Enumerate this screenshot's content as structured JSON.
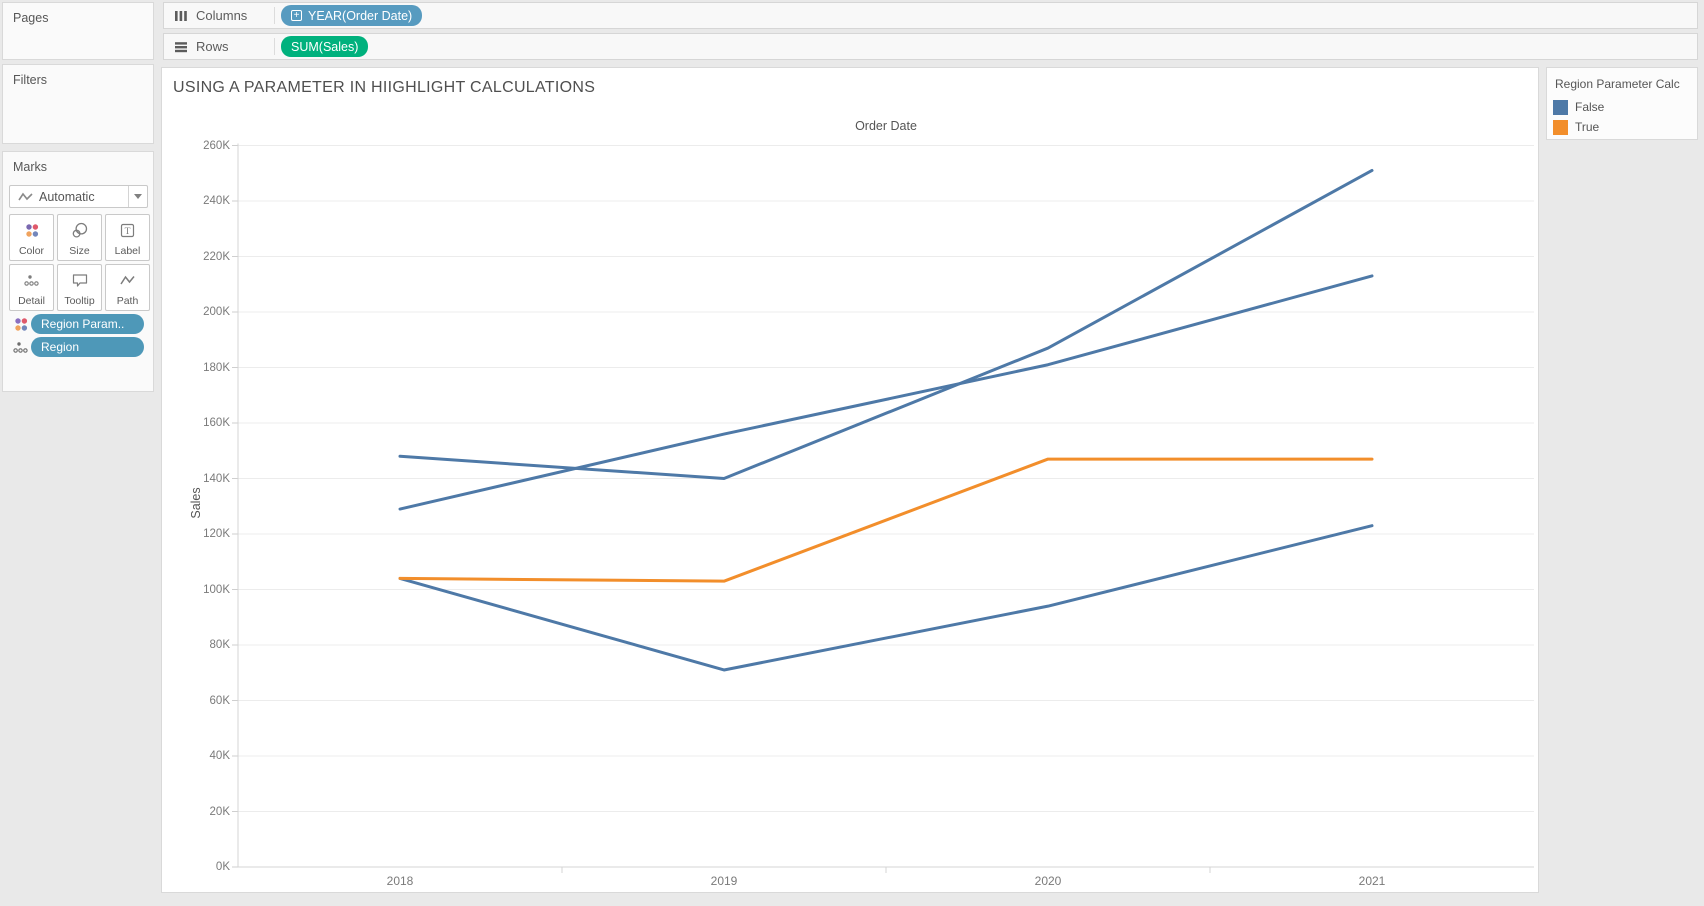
{
  "left_panel": {
    "pages": {
      "label": "Pages"
    },
    "filters": {
      "label": "Filters"
    },
    "marks": {
      "label": "Marks",
      "mark_type": {
        "label": "Automatic"
      },
      "buttons": [
        {
          "label": "Color"
        },
        {
          "label": "Size"
        },
        {
          "label": "Label"
        },
        {
          "label": "Detail"
        },
        {
          "label": "Tooltip"
        },
        {
          "label": "Path"
        }
      ],
      "pills": [
        {
          "label": "Region Param.."
        },
        {
          "label": "Region"
        }
      ]
    }
  },
  "shelves": {
    "columns": {
      "label": "Columns",
      "pill": "YEAR(Order Date)"
    },
    "rows": {
      "label": "Rows",
      "pill": "SUM(Sales)"
    }
  },
  "worksheet": {
    "title": "USING A PARAMETER IN HIIGHLIGHT CALCULATIONS"
  },
  "chart_data": {
    "type": "line",
    "title": "USING A PARAMETER IN HIIGHLIGHT CALCULATIONS",
    "x_title": "Order Date",
    "y_title": "Sales",
    "categories": [
      "2018",
      "2019",
      "2020",
      "2021"
    ],
    "series": [
      {
        "name": "False",
        "color": "#4e79a7",
        "values_k": [
          148,
          140,
          187,
          251
        ]
      },
      {
        "name": "False",
        "color": "#4e79a7",
        "values_k": [
          129,
          156,
          181,
          213
        ]
      },
      {
        "name": "False",
        "color": "#4e79a7",
        "values_k": [
          104,
          71,
          94,
          123
        ]
      },
      {
        "name": "True",
        "color": "#f28e2b",
        "values_k": [
          104,
          103,
          147,
          147
        ]
      }
    ],
    "y_ticks": [
      "0K",
      "20K",
      "40K",
      "60K",
      "80K",
      "100K",
      "120K",
      "140K",
      "160K",
      "180K",
      "200K",
      "220K",
      "240K",
      "260K"
    ],
    "ylim_k": [
      0,
      260
    ],
    "grid": true,
    "legend": {
      "title": "Region Parameter Calc",
      "position": "top-right",
      "entries": [
        {
          "label": "False",
          "color": "#4e79a7"
        },
        {
          "label": "True",
          "color": "#f28e2b"
        }
      ]
    }
  },
  "colors": {
    "dimension_pill_blue": "#579bc0",
    "marks_pill_blue": "#4e98b8",
    "measure_pill_green": "#00b17d",
    "line_false_blue": "#4e79a7",
    "line_true_orange": "#f28e2b",
    "gridline": "#ececec",
    "axis_line": "#d4d4d4"
  }
}
